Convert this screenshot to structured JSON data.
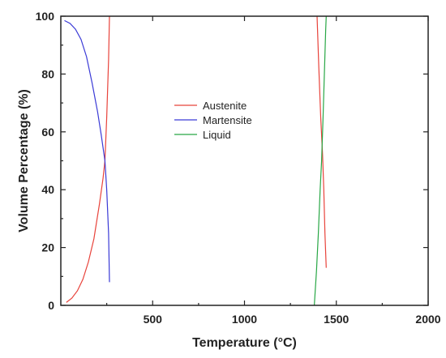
{
  "chart_data": {
    "type": "line",
    "title": "",
    "xlabel": "Temperature (°C)",
    "ylabel": "Volume Percentage (%)",
    "xlim": [
      0,
      2000
    ],
    "ylim": [
      0,
      100
    ],
    "x_ticks": [
      500,
      1000,
      1500,
      2000
    ],
    "y_ticks": [
      0,
      20,
      40,
      60,
      80,
      100
    ],
    "grid": false,
    "legend_position": "center",
    "series": [
      {
        "name": "Austenite",
        "color": "#e8433b",
        "segments": [
          [
            [
              30,
              1
            ],
            [
              60,
              2.5
            ],
            [
              90,
              5
            ],
            [
              120,
              9
            ],
            [
              150,
              15
            ],
            [
              180,
              23
            ],
            [
              210,
              35
            ],
            [
              230,
              44
            ],
            [
              240,
              50
            ],
            [
              250,
              65
            ],
            [
              260,
              85
            ],
            [
              265,
              100
            ]
          ],
          [
            [
              1395,
              100
            ],
            [
              1405,
              82
            ],
            [
              1415,
              65
            ],
            [
              1425,
              52
            ],
            [
              1432,
              40
            ],
            [
              1438,
              25
            ],
            [
              1445,
              13
            ]
          ]
        ]
      },
      {
        "name": "Martensite",
        "color": "#3a3ad6",
        "segments": [
          [
            [
              20,
              98.5
            ],
            [
              50,
              97.5
            ],
            [
              80,
              95.5
            ],
            [
              110,
              92
            ],
            [
              140,
              86
            ],
            [
              170,
              77
            ],
            [
              200,
              67
            ],
            [
              220,
              59
            ],
            [
              240,
              50
            ],
            [
              250,
              40
            ],
            [
              260,
              25
            ],
            [
              265,
              8
            ]
          ]
        ]
      },
      {
        "name": "Liquid",
        "color": "#28a745",
        "segments": [
          [
            [
              1380,
              0
            ],
            [
              1392,
              12
            ],
            [
              1402,
              25
            ],
            [
              1412,
              40
            ],
            [
              1420,
              50
            ],
            [
              1428,
              65
            ],
            [
              1435,
              80
            ],
            [
              1442,
              95
            ],
            [
              1445,
              100
            ]
          ]
        ]
      }
    ]
  }
}
